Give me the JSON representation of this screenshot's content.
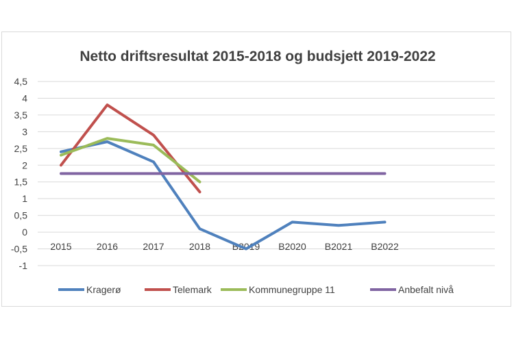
{
  "chart_data": {
    "type": "line",
    "title": "Netto driftsresultat 2015-2018 og budsjett 2019-2022",
    "xlabel": "",
    "ylabel": "",
    "categories": [
      "2015",
      "2016",
      "2017",
      "2018",
      "B2019",
      "B2020",
      "B2021",
      "B2022"
    ],
    "ylim": [
      -1,
      4.5
    ],
    "yticks": [
      "4,5",
      "4",
      "3,5",
      "3",
      "2,5",
      "2",
      "1,5",
      "1",
      "0,5",
      "0",
      "-0,5",
      "-1"
    ],
    "ytick_values": [
      4.5,
      4,
      3.5,
      3,
      2.5,
      2,
      1.5,
      1,
      0.5,
      0,
      -0.5,
      -1
    ],
    "grid": true,
    "legend_position": "bottom",
    "series": [
      {
        "name": "Kragerø",
        "color": "#4f81bd",
        "values": [
          2.4,
          2.7,
          2.1,
          0.1,
          -0.5,
          0.3,
          0.2,
          0.3
        ]
      },
      {
        "name": "Telemark",
        "color": "#c0504d",
        "values": [
          2.0,
          3.8,
          2.9,
          1.2,
          null,
          null,
          null,
          null
        ]
      },
      {
        "name": "Kommunegruppe 11",
        "color": "#9bbb59",
        "values": [
          2.3,
          2.8,
          2.6,
          1.5,
          null,
          null,
          null,
          null
        ]
      },
      {
        "name": "Anbefalt nivå",
        "color": "#8064a2",
        "values": [
          1.75,
          1.75,
          1.75,
          1.75,
          1.75,
          1.75,
          1.75,
          1.75
        ]
      }
    ]
  }
}
